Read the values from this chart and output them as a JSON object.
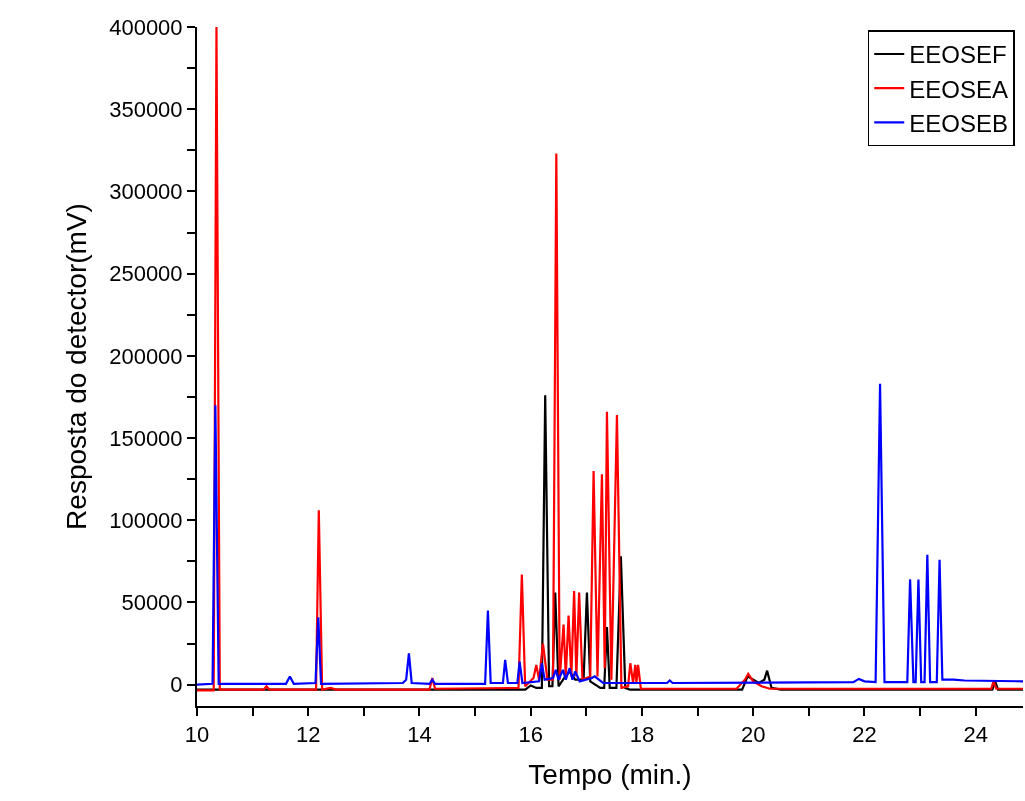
{
  "chart_data": {
    "type": "line",
    "xlabel": "Tempo (min.)",
    "ylabel": "Resposta do detector(mV)",
    "xlim": [
      10,
      24.85
    ],
    "ylim": [
      -13000,
      400000
    ],
    "xticks": [
      10,
      {
        "value": 11,
        "label": null
      },
      12,
      {
        "value": 13,
        "label": null
      },
      14,
      {
        "value": 15,
        "label": null
      },
      16,
      {
        "value": 17,
        "label": null
      },
      18,
      {
        "value": 19,
        "label": null
      },
      20,
      {
        "value": 21,
        "label": null
      },
      22,
      {
        "value": 23,
        "label": null
      },
      24
    ],
    "yticks": [
      0,
      {
        "value": 25000,
        "label": null
      },
      50000,
      {
        "value": 75000,
        "label": null
      },
      100000,
      {
        "value": 125000,
        "label": null
      },
      150000,
      {
        "value": 175000,
        "label": null
      },
      200000,
      {
        "value": 225000,
        "label": null
      },
      250000,
      {
        "value": 275000,
        "label": null
      },
      300000,
      {
        "value": 325000,
        "label": null
      },
      350000,
      {
        "value": 375000,
        "label": null
      },
      400000
    ],
    "grid": false,
    "legend": "top right",
    "marker": "none",
    "line_style": "solid",
    "series": [
      {
        "name": "EEOSEF",
        "color": "#000000",
        "x": [
          10,
          15.9,
          16.0,
          16.1,
          16.2,
          16.26,
          16.33,
          16.39,
          16.44,
          16.5,
          16.6,
          16.7,
          16.8,
          16.95,
          17.01,
          17.07,
          17.25,
          17.32,
          17.37,
          17.42,
          17.54,
          17.62,
          17.7,
          17.78,
          19.8,
          19.9,
          20.1,
          20.2,
          20.25,
          20.33,
          20.5,
          24.3,
          24.35,
          24.4,
          24.85
        ],
        "values": [
          -3000,
          -3000,
          -500,
          -2000,
          -2000,
          176000,
          -1000,
          -1000,
          56000,
          -1000,
          4000,
          8000,
          3000,
          3000,
          56000,
          2000,
          -2000,
          -2000,
          35000,
          -2000,
          -2000,
          78000,
          -2000,
          -3000,
          -3000,
          5000,
          1000,
          3000,
          8500,
          -2000,
          -3000,
          -3000,
          2000,
          -3000,
          -3000
        ]
      },
      {
        "name": "EEOSEA",
        "color": "#ff0000",
        "x": [
          10,
          10.3,
          10.35,
          10.41,
          11.2,
          11.25,
          11.3,
          12.14,
          12.19,
          12.25,
          12.4,
          12.5,
          14.18,
          14.23,
          14.28,
          15.78,
          15.84,
          15.9,
          16.05,
          16.1,
          16.15,
          16.22,
          16.3,
          16.4,
          16.46,
          16.52,
          16.59,
          16.63,
          16.68,
          16.73,
          16.78,
          16.82,
          16.87,
          16.93,
          17.07,
          17.13,
          17.2,
          17.28,
          17.33,
          17.37,
          17.45,
          17.55,
          17.63,
          17.75,
          17.79,
          17.84,
          17.88,
          17.9,
          17.93,
          17.98,
          19.7,
          19.85,
          19.91,
          20.0,
          20.15,
          20.3,
          24.28,
          24.32,
          24.37,
          24.85
        ],
        "values": [
          -3500,
          -3500,
          400000,
          -3000,
          -3000,
          -1000,
          -3000,
          -3000,
          106000,
          -3000,
          -2000,
          -3000,
          -3000,
          4000,
          -2500,
          -2000,
          67000,
          -1000,
          4000,
          12000,
          3000,
          25000,
          3000,
          3000,
          323000,
          3000,
          36500,
          5000,
          42000,
          5000,
          57000,
          5000,
          56000,
          3000,
          5000,
          130000,
          5000,
          128000,
          10000,
          166000,
          3000,
          164000,
          -2000,
          -1000,
          13000,
          1000,
          12000,
          1000,
          12000,
          -2500,
          -2500,
          3000,
          6500,
          2000,
          -1000,
          -2500,
          -2500,
          2000,
          -2500,
          -2500
        ]
      },
      {
        "name": "EEOSEB",
        "color": "#0000ff",
        "x": [
          10,
          10.28,
          10.33,
          10.39,
          11.6,
          11.67,
          11.74,
          12.13,
          12.18,
          12.23,
          13.7,
          13.76,
          13.81,
          13.86,
          14.18,
          14.23,
          14.28,
          15.18,
          15.23,
          15.28,
          15.5,
          15.54,
          15.59,
          15.76,
          15.8,
          15.85,
          16.15,
          16.2,
          16.25,
          16.4,
          16.45,
          16.5,
          16.58,
          16.63,
          16.7,
          16.75,
          16.8,
          16.88,
          17.1,
          17.15,
          17.3,
          18.45,
          18.5,
          18.55,
          21.8,
          21.9,
          22.0,
          22.2,
          22.28,
          22.36,
          22.77,
          22.82,
          22.88,
          22.92,
          22.97,
          23.02,
          23.08,
          23.13,
          23.18,
          23.3,
          23.35,
          23.4,
          23.6,
          23.8,
          24.85
        ],
        "values": [
          0,
          500,
          170000,
          500,
          500,
          5000,
          500,
          1000,
          41000,
          500,
          1000,
          3000,
          19000,
          1000,
          500,
          3000,
          500,
          500,
          45000,
          1000,
          1000,
          15000,
          1000,
          1000,
          14000,
          1000,
          2000,
          13000,
          3000,
          4000,
          9000,
          3000,
          9000,
          3000,
          10000,
          3000,
          8000,
          2000,
          4000,
          5000,
          1000,
          1000,
          2500,
          1000,
          1500,
          3500,
          2000,
          1500,
          183000,
          1500,
          1500,
          64000,
          1500,
          1500,
          64000,
          1500,
          1500,
          79000,
          1500,
          1500,
          76000,
          3000,
          3000,
          2500,
          2000
        ]
      }
    ]
  }
}
